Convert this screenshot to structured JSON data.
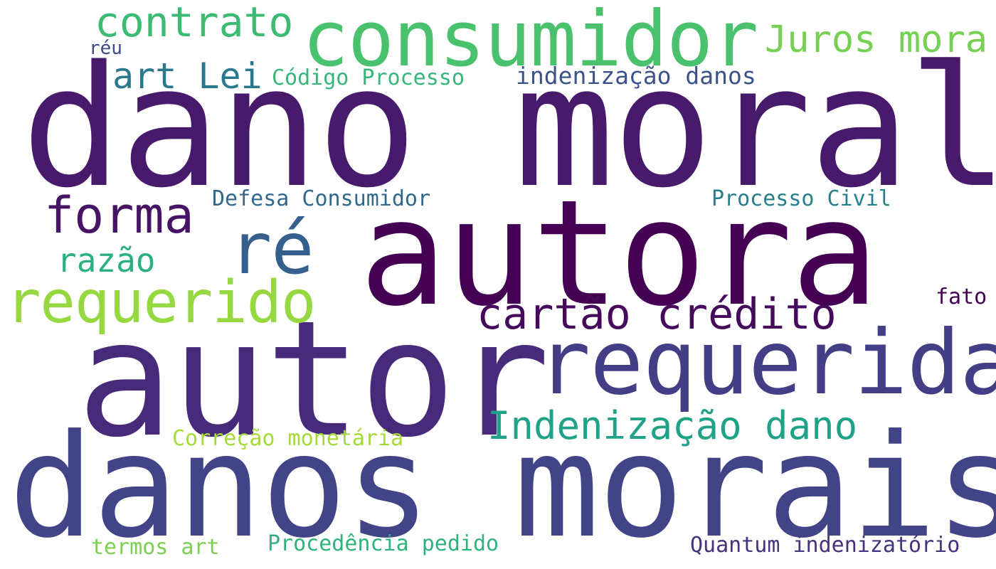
{
  "words": {
    "dano_moral": {
      "text": "dano moral",
      "color": "#481a6c"
    },
    "autora": {
      "text": "autora",
      "color": "#440154"
    },
    "autor": {
      "text": "autor",
      "color": "#472a7a"
    },
    "danos_morais": {
      "text": "danos morais",
      "color": "#414487"
    },
    "requerida": {
      "text": "requerida",
      "color": "#433e85"
    },
    "consumidor": {
      "text": "consumidor",
      "color": "#4ac16d"
    },
    "re": {
      "text": "ré",
      "color": "#355f8d"
    },
    "requerido": {
      "text": "requerido",
      "color": "#95d840"
    },
    "forma": {
      "text": "forma",
      "color": "#471365"
    },
    "cartao_credito": {
      "text": "cartão crédito",
      "color": "#450a5c"
    },
    "contrato": {
      "text": "contrato",
      "color": "#3cbb75"
    },
    "indenizacao_dano": {
      "text": "Indenização dano",
      "color": "#1fa287"
    },
    "juros_mora": {
      "text": "Juros mora",
      "color": "#75d054"
    },
    "art_lei": {
      "text": "art Lei",
      "color": "#2a788e"
    },
    "razao": {
      "text": "razão",
      "color": "#2ab07f"
    },
    "indenizacao_danos": {
      "text": "indenização danos",
      "color": "#3b528b"
    },
    "codigo_processo": {
      "text": "Código Processo",
      "color": "#35b779"
    },
    "defesa_consumidor": {
      "text": "Defesa Consumidor",
      "color": "#31688e"
    },
    "processo_civil": {
      "text": "Processo Civil",
      "color": "#277f8e"
    },
    "correcao_monetaria": {
      "text": "Correção monetária",
      "color": "#a5db36"
    },
    "procedencia_pedido": {
      "text": "Procedência pedido",
      "color": "#2eb37c"
    },
    "quantum_indenizatorio": {
      "text": "Quantum indenizatório",
      "color": "#46327e"
    },
    "termos_art": {
      "text": "termos art",
      "color": "#7ad151"
    },
    "fato": {
      "text": "fato",
      "color": "#440154"
    },
    "reu": {
      "text": "réu",
      "color": "#3e4989"
    }
  }
}
